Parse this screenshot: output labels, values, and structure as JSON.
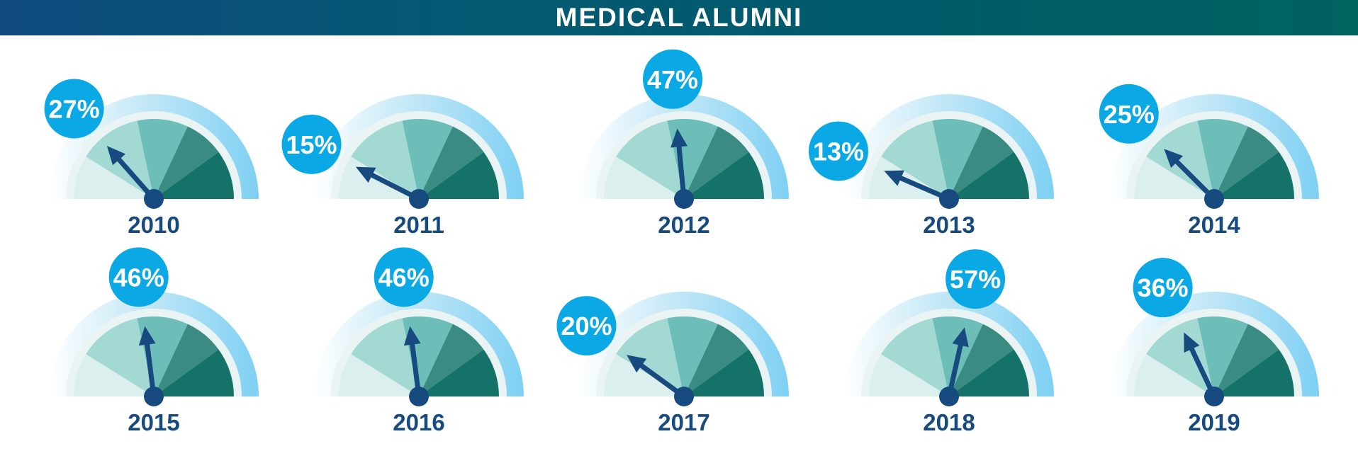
{
  "title": "MEDICAL ALUMNI",
  "colors": {
    "banner_start": "#0f4a7e",
    "banner_end": "#00635f",
    "bubble": "#0aa9e6",
    "needle": "#174a7e",
    "year_text": "#174a7e",
    "outer_ring": "#7ed0f3",
    "segments": [
      "#dcefef",
      "#a3d9d3",
      "#6dbeb8",
      "#3a8c82",
      "#157268"
    ]
  },
  "chart_data": {
    "type": "gauge",
    "unit": "%",
    "range": [
      0,
      100
    ],
    "gauges": [
      {
        "year": "2010",
        "label": "27%",
        "value": 27
      },
      {
        "year": "2011",
        "label": "15%",
        "value": 15
      },
      {
        "year": "2012",
        "label": "47%",
        "value": 47
      },
      {
        "year": "2013",
        "label": "13%",
        "value": 13
      },
      {
        "year": "2014",
        "label": "25%",
        "value": 25
      },
      {
        "year": "2015",
        "label": "46%",
        "value": 46
      },
      {
        "year": "2016",
        "label": "46%",
        "value": 46
      },
      {
        "year": "2017",
        "label": "20%",
        "value": 20
      },
      {
        "year": "2018",
        "label": "57%",
        "value": 57
      },
      {
        "year": "2019",
        "label": "36%",
        "value": 36
      }
    ]
  }
}
